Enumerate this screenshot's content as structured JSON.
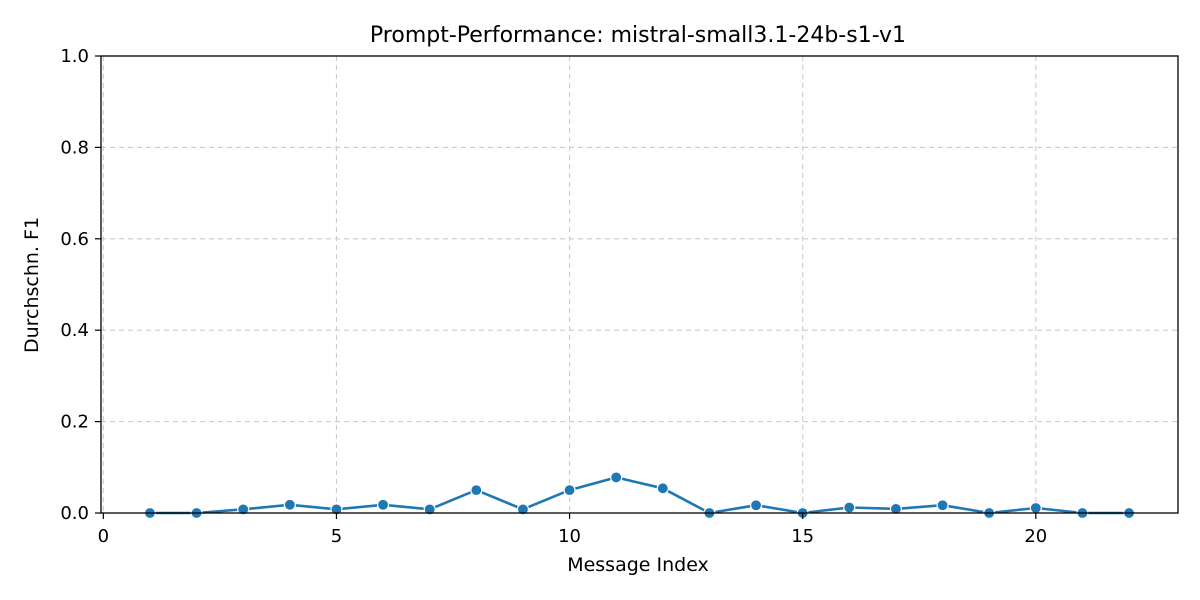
{
  "chart_data": {
    "type": "line",
    "title": "Prompt-Performance: mistral-small3.1-24b-s1-v1",
    "xlabel": "Message Index",
    "ylabel": "Durchschn. F1",
    "xlim": [
      -0.05,
      23.05
    ],
    "ylim": [
      0,
      1.0
    ],
    "xticks": [
      0,
      5,
      10,
      15,
      20
    ],
    "yticks": [
      0.0,
      0.2,
      0.4,
      0.6,
      0.8,
      1.0
    ],
    "xtick_labels": [
      "0",
      "5",
      "10",
      "15",
      "20"
    ],
    "ytick_labels": [
      "0.0",
      "0.2",
      "0.4",
      "0.6",
      "0.8",
      "1.0"
    ],
    "grid": true,
    "series": [
      {
        "color": "#1f77b4",
        "marker": "circle",
        "x": [
          1,
          2,
          3,
          4,
          5,
          6,
          7,
          8,
          9,
          10,
          11,
          12,
          13,
          14,
          15,
          16,
          17,
          18,
          19,
          20,
          21,
          22
        ],
        "y": [
          0.0,
          0.0,
          0.008,
          0.018,
          0.008,
          0.018,
          0.008,
          0.05,
          0.008,
          0.05,
          0.078,
          0.054,
          0.0,
          0.017,
          0.0,
          0.012,
          0.009,
          0.017,
          0.0,
          0.011,
          0.0,
          0.0
        ]
      }
    ]
  }
}
